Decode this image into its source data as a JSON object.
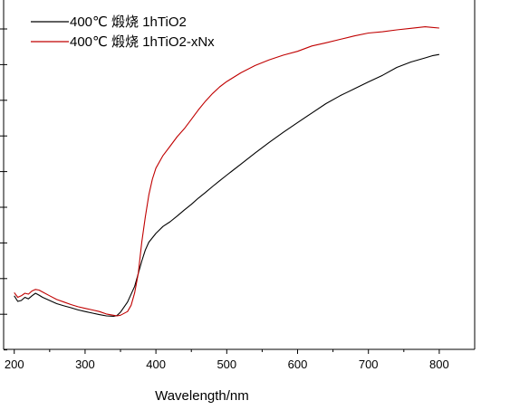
{
  "chart_data": {
    "type": "line",
    "title": "",
    "xlabel": "Wavelength/nm",
    "ylabel": "",
    "xlim": [
      185,
      850
    ],
    "ylim": [
      0,
      100
    ],
    "xticks": [
      200,
      300,
      400,
      500,
      600,
      700,
      800
    ],
    "yticks_shown_as_marks_only": true,
    "grid": false,
    "legend_position": "top-left",
    "series": [
      {
        "name": "400℃ 煅烧 1hTiO2",
        "color": "#000000",
        "points": [
          [
            200,
            13.0
          ],
          [
            205,
            11.2
          ],
          [
            210,
            11.5
          ],
          [
            215,
            12.5
          ],
          [
            220,
            12.0
          ],
          [
            225,
            13.0
          ],
          [
            230,
            13.8
          ],
          [
            235,
            13.2
          ],
          [
            240,
            12.5
          ],
          [
            250,
            11.5
          ],
          [
            260,
            10.5
          ],
          [
            270,
            9.8
          ],
          [
            280,
            9.2
          ],
          [
            290,
            8.5
          ],
          [
            300,
            8.0
          ],
          [
            310,
            7.5
          ],
          [
            320,
            7.0
          ],
          [
            330,
            6.6
          ],
          [
            340,
            6.5
          ],
          [
            345,
            6.7
          ],
          [
            350,
            7.8
          ],
          [
            360,
            11.0
          ],
          [
            370,
            16.0
          ],
          [
            375,
            20.0
          ],
          [
            380,
            24.0
          ],
          [
            385,
            27.5
          ],
          [
            390,
            30.0
          ],
          [
            400,
            32.8
          ],
          [
            410,
            35.0
          ],
          [
            420,
            36.5
          ],
          [
            430,
            38.3
          ],
          [
            440,
            40.2
          ],
          [
            450,
            42.0
          ],
          [
            460,
            44.0
          ],
          [
            470,
            45.8
          ],
          [
            480,
            47.7
          ],
          [
            490,
            49.5
          ],
          [
            500,
            51.3
          ],
          [
            520,
            54.8
          ],
          [
            540,
            58.3
          ],
          [
            560,
            61.7
          ],
          [
            580,
            64.9
          ],
          [
            600,
            68.0
          ],
          [
            620,
            71.0
          ],
          [
            640,
            74.0
          ],
          [
            660,
            76.5
          ],
          [
            680,
            78.7
          ],
          [
            700,
            80.9
          ],
          [
            720,
            83.0
          ],
          [
            740,
            85.5
          ],
          [
            760,
            87.2
          ],
          [
            780,
            88.5
          ],
          [
            790,
            89.2
          ],
          [
            800,
            89.6
          ]
        ]
      },
      {
        "name": "400℃ 煅烧 1hTiO2-xNx",
        "color": "#c00000",
        "points": [
          [
            200,
            14.0
          ],
          [
            205,
            12.5
          ],
          [
            210,
            13.0
          ],
          [
            215,
            13.8
          ],
          [
            220,
            13.5
          ],
          [
            225,
            14.5
          ],
          [
            230,
            15.0
          ],
          [
            235,
            14.8
          ],
          [
            240,
            14.2
          ],
          [
            250,
            13.0
          ],
          [
            260,
            11.8
          ],
          [
            270,
            11.0
          ],
          [
            280,
            10.2
          ],
          [
            290,
            9.5
          ],
          [
            300,
            9.0
          ],
          [
            310,
            8.5
          ],
          [
            320,
            8.0
          ],
          [
            330,
            7.2
          ],
          [
            340,
            6.8
          ],
          [
            345,
            6.6
          ],
          [
            350,
            6.8
          ],
          [
            360,
            8.0
          ],
          [
            365,
            10.0
          ],
          [
            370,
            14.0
          ],
          [
            375,
            20.0
          ],
          [
            380,
            30.0
          ],
          [
            385,
            38.0
          ],
          [
            390,
            45.0
          ],
          [
            395,
            50.0
          ],
          [
            400,
            53.5
          ],
          [
            410,
            57.5
          ],
          [
            420,
            60.5
          ],
          [
            430,
            63.5
          ],
          [
            440,
            66.0
          ],
          [
            450,
            69.0
          ],
          [
            460,
            72.0
          ],
          [
            470,
            74.8
          ],
          [
            480,
            77.2
          ],
          [
            490,
            79.3
          ],
          [
            500,
            81.0
          ],
          [
            520,
            83.8
          ],
          [
            540,
            86.1
          ],
          [
            560,
            87.9
          ],
          [
            580,
            89.4
          ],
          [
            600,
            90.6
          ],
          [
            620,
            92.3
          ],
          [
            640,
            93.3
          ],
          [
            660,
            94.4
          ],
          [
            680,
            95.5
          ],
          [
            700,
            96.4
          ],
          [
            720,
            96.8
          ],
          [
            740,
            97.4
          ],
          [
            760,
            97.9
          ],
          [
            780,
            98.4
          ],
          [
            790,
            98.2
          ],
          [
            800,
            98.0
          ]
        ]
      }
    ]
  }
}
